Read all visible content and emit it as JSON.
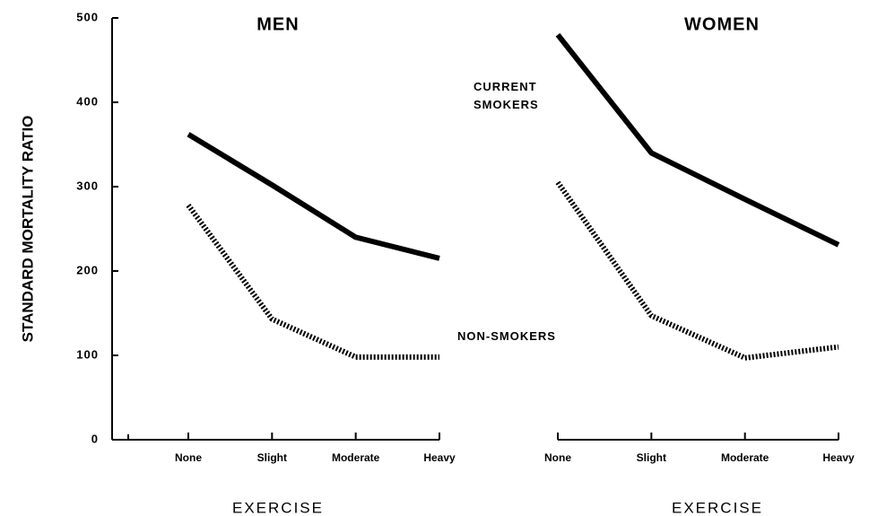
{
  "chart_data": [
    {
      "type": "line",
      "title": "MEN",
      "xlabel": "EXERCISE",
      "ylabel": "STANDARD MORTALITY RATIO",
      "categories": [
        "None",
        "Slight",
        "Moderate",
        "Heavy"
      ],
      "ylim": [
        0,
        500
      ],
      "yticks": [
        0,
        100,
        200,
        300,
        400,
        500
      ],
      "series": [
        {
          "name": "CURRENT SMOKERS",
          "color": "#000000",
          "style": "solid",
          "values": [
            362,
            302,
            240,
            215
          ]
        },
        {
          "name": "NON-SMOKERS",
          "color": "#000000",
          "style": "dotted",
          "values": [
            278,
            143,
            98,
            98
          ]
        }
      ]
    },
    {
      "type": "line",
      "title": "WOMEN",
      "xlabel": "EXERCISE",
      "categories": [
        "None",
        "Slight",
        "Moderate",
        "Heavy"
      ],
      "ylim": [
        0,
        500
      ],
      "series": [
        {
          "color": "#000000",
          "style": "solid",
          "values": [
            480,
            340,
            285,
            231
          ]
        },
        {
          "color": "#000000",
          "style": "dotted",
          "values": [
            305,
            147,
            97,
            110
          ]
        }
      ]
    }
  ]
}
